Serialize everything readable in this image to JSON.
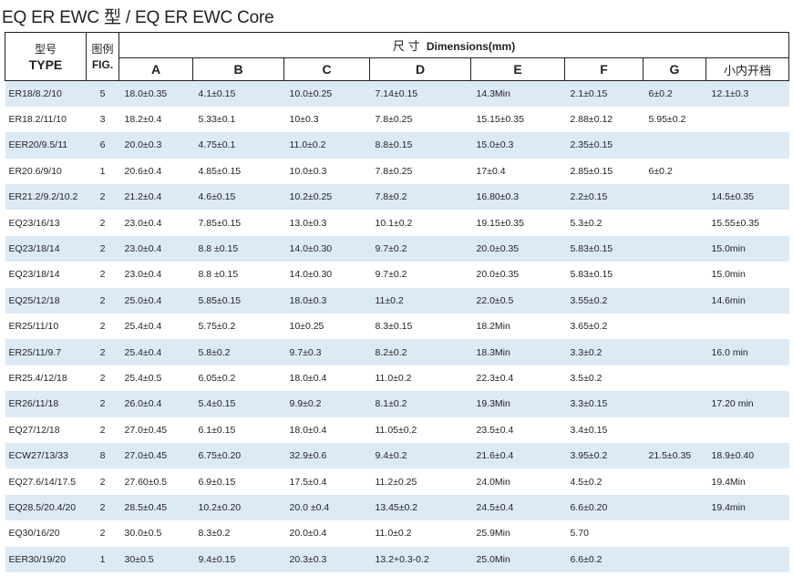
{
  "title": "EQ ER EWC 型   / EQ ER EWC Core",
  "header": {
    "type_cn": "型号",
    "type_en": "TYPE",
    "fig_cn": "图例",
    "fig_en": "FIG.",
    "dims_cn": "尺 寸",
    "dims_en": "Dimensions(mm)",
    "columns": [
      "A",
      "B",
      "C",
      "D",
      "E",
      "F",
      "G",
      "小内开档"
    ]
  },
  "row_shading_color": "#dceaf6",
  "rows": [
    {
      "type": "ER18/8.2/10",
      "fig": "5",
      "a": "18.0±0.35",
      "b": "4.1±0.15",
      "c": "10.0±0.25",
      "d": "7.14±0.15",
      "e": "14.3Min",
      "f": "2.1±0.15",
      "g": "6±0.2",
      "h": "12.1±0.3"
    },
    {
      "type": "ER18.2/11/10",
      "fig": "3",
      "a": "18.2±0.4",
      "b": "5.33±0.1",
      "c": "10±0.3",
      "d": "7.8±0.25",
      "e": "15.15±0.35",
      "f": "2.88±0.12",
      "g": "5.95±0.2",
      "h": ""
    },
    {
      "type": "EER20/9.5/11",
      "fig": "6",
      "a": "20.0±0.3",
      "b": "4.75±0.1",
      "c": "11.0±0.2",
      "d": "8.8±0.15",
      "e": "15.0±0.3",
      "f": "2.35±0.15",
      "g": "",
      "h": ""
    },
    {
      "type": "ER20.6/9/10",
      "fig": "1",
      "a": "20.6±0.4",
      "b": "4.85±0.15",
      "c": "10.0±0.3",
      "d": "7.8±0.25",
      "e": "17±0.4",
      "f": "2.85±0.15",
      "g": "6±0.2",
      "h": ""
    },
    {
      "type": "ER21.2/9.2/10.2",
      "fig": "2",
      "a": "21.2±0.4",
      "b": "4.6±0.15",
      "c": "10.2±0.25",
      "d": "7.8±0.2",
      "e": "16.80±0.3",
      "f": "2.2±0.15",
      "g": "",
      "h": "14.5±0.35"
    },
    {
      "type": "EQ23/16/13",
      "fig": "2",
      "a": "23.0±0.4",
      "b": "7.85±0.15",
      "c": "13.0±0.3",
      "d": "10.1±0.2",
      "e": "19.15±0.35",
      "f": "5.3±0.2",
      "g": "",
      "h": "15.55±0.35"
    },
    {
      "type": "EQ23/18/14",
      "fig": "2",
      "a": "23.0±0.4",
      "b": "8.8 ±0.15",
      "c": "14.0±0.30",
      "d": "9.7±0.2",
      "e": "20.0±0.35",
      "f": "5.83±0.15",
      "g": "",
      "h": "15.0min"
    },
    {
      "type": "EQ23/18/14",
      "fig": "2",
      "a": "23.0±0.4",
      "b": "8.8 ±0.15",
      "c": "14.0±0.30",
      "d": "9.7±0.2",
      "e": "20.0±0.35",
      "f": "5.83±0.15",
      "g": "",
      "h": "15.0min"
    },
    {
      "type": "EQ25/12/18",
      "fig": "2",
      "a": "25.0±0.4",
      "b": "5.85±0.15",
      "c": "18.0±0.3",
      "d": "11±0.2",
      "e": "22.0±0.5",
      "f": "3.55±0.2",
      "g": "",
      "h": "14.6min"
    },
    {
      "type": "ER25/11/10",
      "fig": "2",
      "a": "25.4±0.4",
      "b": "5.75±0.2",
      "c": "10±0.25",
      "d": "8.3±0.15",
      "e": "18.2Min",
      "f": "3.65±0.2",
      "g": "",
      "h": ""
    },
    {
      "type": "ER25/11/9.7",
      "fig": "2",
      "a": "25.4±0.4",
      "b": "5.8±0.2",
      "c": "9.7±0.3",
      "d": "8.2±0.2",
      "e": "18.3Min",
      "f": "3.3±0.2",
      "g": "",
      "h": "16.0 min"
    },
    {
      "type": "ER25.4/12/18",
      "fig": "2",
      "a": "25.4±0.5",
      "b": "6.05±0.2",
      "c": "18.0±0.4",
      "d": "11.0±0.2",
      "e": "22.3±0.4",
      "f": "3.5±0.2",
      "g": "",
      "h": ""
    },
    {
      "type": "ER26/11/18",
      "fig": "2",
      "a": "26.0±0.4",
      "b": "5.4±0.15",
      "c": "9.9±0.2",
      "d": "8.1±0.2",
      "e": "19.3Min",
      "f": "3.3±0.15",
      "g": "",
      "h": "17.20 min"
    },
    {
      "type": "EQ27/12/18",
      "fig": "2",
      "a": "27.0±0.45",
      "b": "6.1±0.15",
      "c": "18.0±0.4",
      "d": "11.05±0.2",
      "e": "23.5±0.4",
      "f": "3.4±0.15",
      "g": "",
      "h": ""
    },
    {
      "type": "ECW27/13/33",
      "fig": "8",
      "a": "27.0±0.45",
      "b": "6.75±0.20",
      "c": "32.9±0.6",
      "d": "9.4±0.2",
      "e": "21.6±0.4",
      "f": "3.95±0.2",
      "g": "21.5±0.35",
      "h": "18.9±0.40"
    },
    {
      "type": "EQ27.6/14/17.5",
      "fig": "2",
      "a": "27.60±0.5",
      "b": "6.9±0.15",
      "c": "17.5±0.4",
      "d": "11.2±0.25",
      "e": "24.0Min",
      "f": "4.5±0.2",
      "g": "",
      "h": "19.4Min"
    },
    {
      "type": "EQ28.5/20.4/20",
      "fig": "2",
      "a": "28.5±0.45",
      "b": "10.2±0.20",
      "c": "20.0 ±0.4",
      "d": "13.45±0.2",
      "e": "24.5±0.4",
      "f": "6.6±0.20",
      "g": "",
      "h": "19.4min"
    },
    {
      "type": "EQ30/16/20",
      "fig": "2",
      "a": "30.0±0.5",
      "b": "8.3±0.2",
      "c": "20.0±0.4",
      "d": "11.0±0.2",
      "e": "25.9Min",
      "f": "5.70",
      "g": "",
      "h": ""
    },
    {
      "type": "EER30/19/20",
      "fig": "1",
      "a": "30±0.5",
      "b": "9.4±0.15",
      "c": "20.3±0.3",
      "d": "13.2+0.3-0.2",
      "e": "25.0Min",
      "f": "6.6±0.2",
      "g": "",
      "h": ""
    }
  ]
}
